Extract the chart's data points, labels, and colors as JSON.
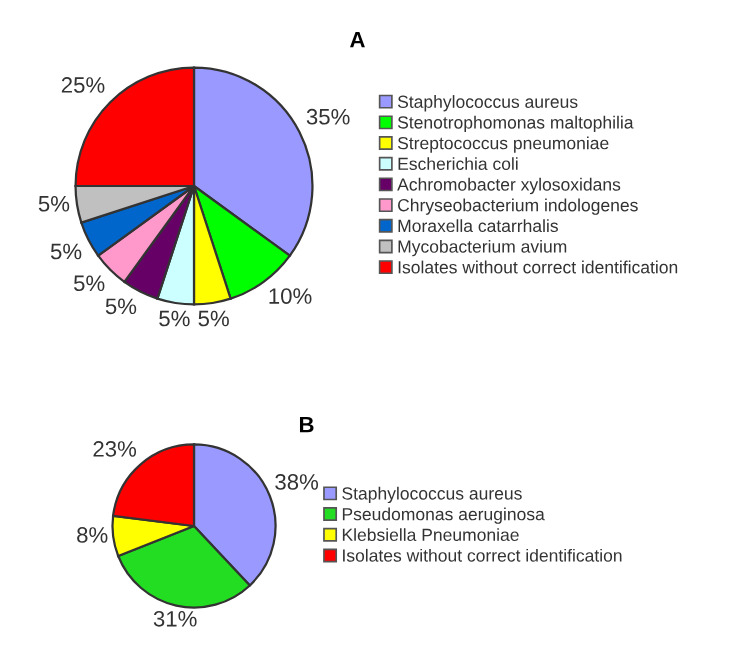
{
  "chart_data": [
    {
      "type": "pie",
      "title": "A",
      "legend": "right",
      "categories": [
        "Staphylococcus aureus",
        "Stenotrophomonas maltophilia",
        "Streptococcus pneumoniae",
        "Escherichia coli",
        "Achromobacter xylosoxidans",
        "Chryseobacterium indologenes",
        "Moraxella catarrhalis",
        "Mycobacterium avium",
        "Isolates without correct identification"
      ],
      "values": [
        35,
        10,
        5,
        5,
        5,
        5,
        5,
        5,
        25
      ],
      "value_labels": [
        "35%",
        "10%",
        "5%",
        "5%",
        "5%",
        "5%",
        "5%",
        "5%",
        "25%"
      ],
      "colors": [
        "#9999ff",
        "#00ff00",
        "#ffff00",
        "#ccffff",
        "#660066",
        "#ff99cc",
        "#0066cc",
        "#c0c0c0",
        "#ff0000"
      ]
    },
    {
      "type": "pie",
      "title": "B",
      "legend": "right",
      "categories": [
        "Staphylococcus aureus",
        "Pseudomonas aeruginosa",
        "Klebsiella Pneumoniae",
        "Isolates without correct identification"
      ],
      "values": [
        38,
        31,
        8,
        23
      ],
      "value_labels": [
        "38%",
        "31%",
        "8%",
        "23%"
      ],
      "colors": [
        "#9999ff",
        "#22dd22",
        "#ffff00",
        "#ff0000"
      ]
    }
  ]
}
